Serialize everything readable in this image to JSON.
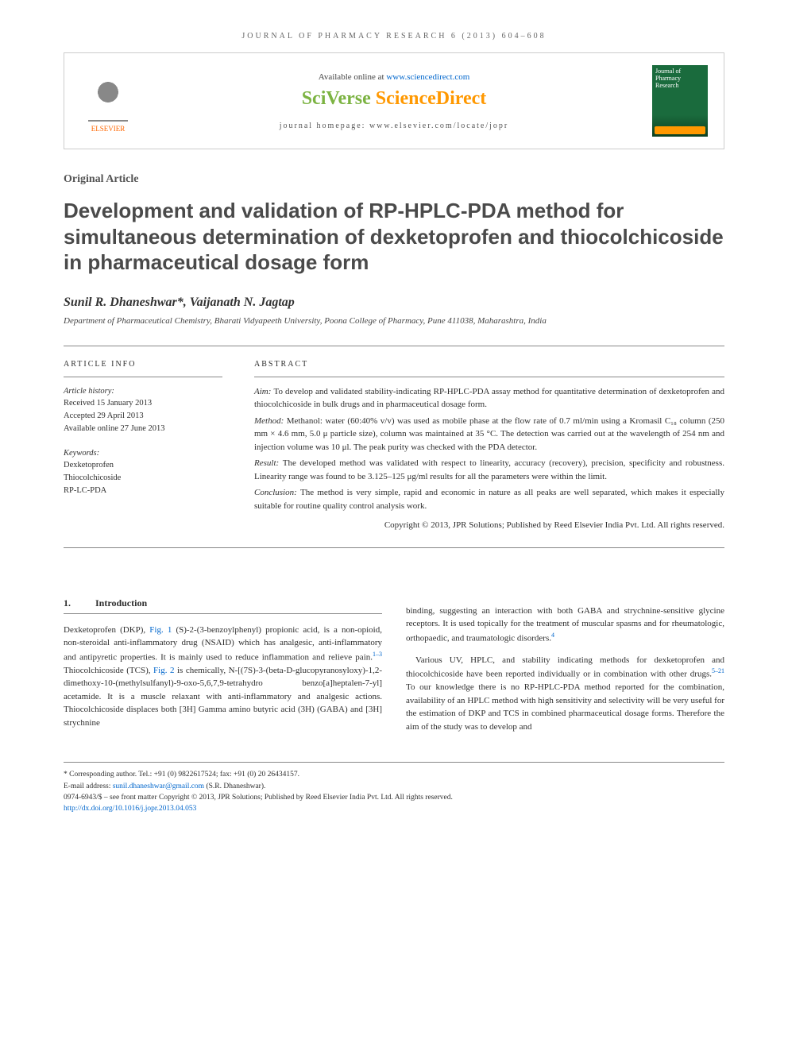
{
  "running_head": "JOURNAL OF PHARMACY RESEARCH 6 (2013) 604–608",
  "header": {
    "available_prefix": "Available online at ",
    "available_url": "www.sciencedirect.com",
    "sciverse_a": "SciVerse ",
    "sciverse_b": "ScienceDirect",
    "homepage_prefix": "journal homepage: ",
    "homepage_url": "www.elsevier.com/locate/jopr",
    "elsevier_label": "ELSEVIER",
    "cover_journal": "Journal of",
    "cover_name": "Pharmacy Research"
  },
  "article_type": "Original Article",
  "title": "Development and validation of RP-HPLC-PDA method for simultaneous determination of dexketoprofen and thiocolchicoside in pharmaceutical dosage form",
  "authors": "Sunil R. Dhaneshwar*, Vaijanath N. Jagtap",
  "affiliation": "Department of Pharmaceutical Chemistry, Bharati Vidyapeeth University, Poona College of Pharmacy, Pune 411038, Maharashtra, India",
  "info": {
    "heading": "ARTICLE INFO",
    "history_label": "Article history:",
    "received": "Received 15 January 2013",
    "accepted": "Accepted 29 April 2013",
    "online": "Available online 27 June 2013",
    "keywords_label": "Keywords:",
    "kw1": "Dexketoprofen",
    "kw2": "Thiocolchicoside",
    "kw3": "RP-LC-PDA"
  },
  "abstract": {
    "heading": "ABSTRACT",
    "aim_label": "Aim: ",
    "aim": "To develop and validated stability-indicating RP-HPLC-PDA assay method for quantitative determination of dexketoprofen and thiocolchicoside in bulk drugs and in pharmaceutical dosage form.",
    "method_label": "Method: ",
    "method": "Methanol: water (60:40% v/v) was used as mobile phase at the flow rate of 0.7 ml/min using a Kromasil C₁₈ column (250 mm × 4.6 mm, 5.0 μ particle size), column was maintained at 35 °C. The detection was carried out at the wavelength of 254 nm and injection volume was 10 μl. The peak purity was checked with the PDA detector.",
    "result_label": "Result: ",
    "result": "The developed method was validated with respect to linearity, accuracy (recovery), precision, specificity and robustness. Linearity range was found to be 3.125–125 μg/ml results for all the parameters were within the limit.",
    "conclusion_label": "Conclusion: ",
    "conclusion": "The method is very simple, rapid and economic in nature as all peaks are well separated, which makes it especially suitable for routine quality control analysis work.",
    "copyright": "Copyright © 2013, JPR Solutions; Published by Reed Elsevier India Pvt. Ltd. All rights reserved."
  },
  "section1": {
    "num": "1.",
    "title": "Introduction"
  },
  "body": {
    "col1_p1a": "Dexketoprofen (DKP), ",
    "col1_fig1": "Fig. 1",
    "col1_p1b": " (S)-2-(3-benzoylphenyl) propionic acid, is a non-opioid, non-steroidal anti-inflammatory drug (NSAID) which has analgesic, anti-inflammatory and antipyretic properties. It is mainly used to reduce inflammation and relieve pain.",
    "col1_ref1": "1–3",
    "col1_p1c": " Thiocolchicoside (TCS), ",
    "col1_fig2": "Fig. 2",
    "col1_p1d": " is chemically, N-[(7S)-3-(beta-D-glucopyranosyloxy)-1,2-dimethoxy-10-(methylsulfanyl)-9-oxo-5,6,7,9-tetrahydro benzo[a]heptalen-7-yl] acetamide. It is a muscle relaxant with anti-inflammatory and analgesic actions. Thiocolchicoside displaces both [3H] Gamma amino butyric acid (3H) (GABA) and [3H] strychnine",
    "col2_p1": "binding, suggesting an interaction with both GABA and strychnine-sensitive glycine receptors. It is used topically for the treatment of muscular spasms and for rheumatologic, orthopaedic, and traumatologic disorders.",
    "col2_ref1": "4",
    "col2_p2a": "Various UV, HPLC, and stability indicating methods for dexketoprofen and thiocolchicoside have been reported individually or in combination with other drugs.",
    "col2_ref2": "5–21",
    "col2_p2b": " To our knowledge there is no RP-HPLC-PDA method reported for the combination, availability of an HPLC method with high sensitivity and selectivity will be very useful for the estimation of DKP and TCS in combined pharmaceutical dosage forms. Therefore the aim of the study was to develop and"
  },
  "footnotes": {
    "corr": "* Corresponding author. Tel.: +91 (0) 9822617524; fax: +91 (0) 20 26434157.",
    "email_label": "E-mail address: ",
    "email": "sunil.dhaneshwar@gmail.com",
    "email_suffix": " (S.R. Dhaneshwar).",
    "issn": "0974-6943/$ – see front matter Copyright © 2013, JPR Solutions; Published by Reed Elsevier India Pvt. Ltd. All rights reserved.",
    "doi": "http://dx.doi.org/10.1016/j.jopr.2013.04.053"
  }
}
